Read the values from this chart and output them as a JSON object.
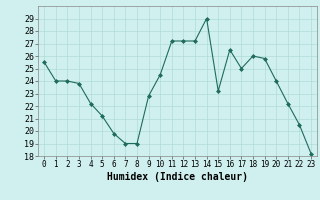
{
  "xlabel": "Humidex (Indice chaleur)",
  "x": [
    0,
    1,
    2,
    3,
    4,
    5,
    6,
    7,
    8,
    9,
    10,
    11,
    12,
    13,
    14,
    15,
    16,
    17,
    18,
    19,
    20,
    21,
    22,
    23
  ],
  "y": [
    25.5,
    24.0,
    24.0,
    23.8,
    22.2,
    21.2,
    19.8,
    19.0,
    19.0,
    22.8,
    24.5,
    27.2,
    27.2,
    27.2,
    29.0,
    23.2,
    26.5,
    25.0,
    26.0,
    25.8,
    24.0,
    22.2,
    20.5,
    18.2
  ],
  "line_color": "#1f6b5e",
  "marker": "D",
  "marker_size": 2,
  "bg_color": "#cff0ee",
  "grid_color": "#b0dbd8",
  "ylim": [
    18,
    30
  ],
  "yticks": [
    18,
    19,
    20,
    21,
    22,
    23,
    24,
    25,
    26,
    27,
    28,
    29
  ],
  "ylabel_fontsize": 6,
  "xlabel_fontsize": 7,
  "tick_labelsize": 5.5
}
